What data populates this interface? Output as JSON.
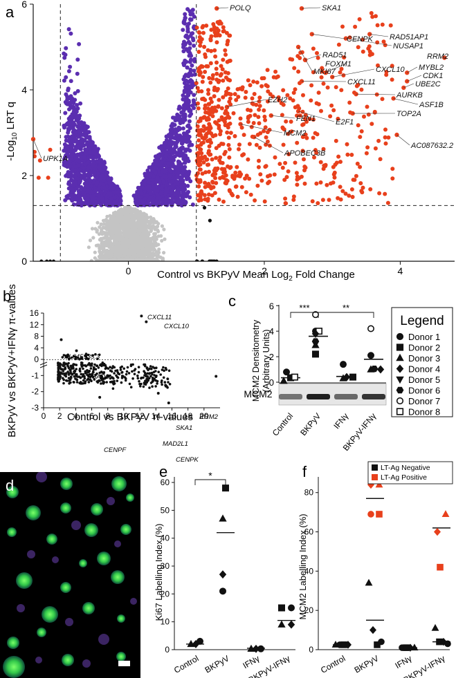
{
  "colors": {
    "red": "#e8401c",
    "purple": "#5b2eb0",
    "gray": "#c4c4c4",
    "black": "#111111"
  },
  "chart_data": [
    {
      "panel": "a",
      "type": "scatter",
      "xlabel_pre": "Control vs BKPyV Mean Log",
      "xlabel_sub": "2",
      "xlabel_post": " Fold Change",
      "ylabel_pre": "-Log",
      "ylabel_sub": "10",
      "ylabel_post": " LRT q",
      "xlim": [
        -1.4,
        4.8
      ],
      "ylim": [
        0,
        6
      ],
      "xticks": [
        "0",
        "2",
        "4"
      ],
      "xtick_values": [
        0,
        2,
        4
      ],
      "yticks": [
        "0",
        "2",
        "4",
        "6"
      ],
      "ytick_values": [
        0,
        2,
        4,
        6
      ],
      "thresholds": {
        "fold_change": [
          -1,
          1
        ],
        "q": 1.3
      },
      "labeled_genes": [
        {
          "gene": "POLQ",
          "x": 1.3,
          "y": 5.9
        },
        {
          "gene": "SKA1",
          "x": 2.55,
          "y": 5.9
        },
        {
          "gene": "CENPK",
          "x": 2.7,
          "y": 5.3
        },
        {
          "gene": "RAD51AP1",
          "x": 3.55,
          "y": 5.3
        },
        {
          "gene": "NUSAP1",
          "x": 3.2,
          "y": 5.2
        },
        {
          "gene": "RRM2",
          "x": 4.65,
          "y": 4.75
        },
        {
          "gene": "MKI67",
          "x": 2.5,
          "y": 5.0
        },
        {
          "gene": "RAD51",
          "x": 2.6,
          "y": 4.7
        },
        {
          "gene": "FOXM1",
          "x": 2.9,
          "y": 4.4
        },
        {
          "gene": "CXCL10",
          "x": 3.0,
          "y": 4.3
        },
        {
          "gene": "MYBL2",
          "x": 4.1,
          "y": 4.4
        },
        {
          "gene": "CDK1",
          "x": 4.1,
          "y": 4.2
        },
        {
          "gene": "UBE2C",
          "x": 4.05,
          "y": 4.05
        },
        {
          "gene": "CXCL11",
          "x": 2.55,
          "y": 4.2
        },
        {
          "gene": "AURKB",
          "x": 3.35,
          "y": 3.9
        },
        {
          "gene": "ASF1B",
          "x": 3.9,
          "y": 3.8
        },
        {
          "gene": "EZH2",
          "x": 1.45,
          "y": 3.6
        },
        {
          "gene": "FEN1",
          "x": 2.1,
          "y": 3.4
        },
        {
          "gene": "E2F1",
          "x": 2.5,
          "y": 3.5
        },
        {
          "gene": "TOP2A",
          "x": 3.3,
          "y": 3.45
        },
        {
          "gene": "MCM2",
          "x": 1.65,
          "y": 3.2
        },
        {
          "gene": "APOBEC3B",
          "x": 1.85,
          "y": 2.9
        },
        {
          "gene": "AC087632.2",
          "x": 3.95,
          "y": 2.95
        },
        {
          "gene": "UPK1A",
          "x": -1.4,
          "y": 2.85
        }
      ]
    },
    {
      "panel": "b",
      "type": "scatter",
      "xlabel": "Control vs BKPyV π-values",
      "ylabel": "BKPyV vs BKPyV+IFNγ π-values",
      "xlim": [
        0,
        22
      ],
      "ylim": [
        -3,
        16
      ],
      "xticks": [
        "0",
        "2",
        "4",
        "6",
        "8",
        "10",
        "12",
        "14",
        "16",
        "18",
        "20"
      ],
      "yticks_upper": [
        "16",
        "12",
        "8",
        "4",
        "0"
      ],
      "yticks_lower": [
        "-1",
        "-2",
        "-3"
      ],
      "labeled_points": [
        {
          "gene": "CXCL11",
          "x": 12.2,
          "y": 15
        },
        {
          "gene": "CXCL10",
          "x": 12.8,
          "y": 13
        },
        {
          "gene": "AL645933.3",
          "x": 2.2,
          "y": 6.8
        },
        {
          "gene": "RSAD2",
          "x": 4.1,
          "y": 3
        },
        {
          "gene": "RRM2",
          "x": 21.5,
          "y": -1.05
        },
        {
          "gene": "SKA1",
          "x": 15.2,
          "y": -1.6
        },
        {
          "gene": "MAD2L1",
          "x": 14.3,
          "y": -2.1
        },
        {
          "gene": "CENPF",
          "x": 7,
          "y": -2.35
        },
        {
          "gene": "CENPK",
          "x": 15.6,
          "y": -2.7
        }
      ]
    },
    {
      "panel": "c",
      "type": "scatter",
      "ylabel": "MCM2 Densitometry",
      "ylabel2": "(Arbitrary Units)",
      "yticks": [
        "0",
        "2",
        "4",
        "6"
      ],
      "ylim": [
        0,
        6
      ],
      "categories": [
        "Control",
        "BKPyV",
        "IFNγ",
        "BKPyV-IFNγ"
      ],
      "blot_label": "MCM2",
      "means": [
        0.35,
        3.6,
        0.45,
        1.8
      ],
      "points": [
        {
          "cat": 0,
          "donor": 1,
          "value": 0.8
        },
        {
          "cat": 0,
          "donor": 2,
          "value": 0.35
        },
        {
          "cat": 0,
          "donor": 3,
          "value": 0.1
        },
        {
          "cat": 0,
          "donor": 8,
          "value": 0.4
        },
        {
          "cat": 1,
          "donor": 1,
          "value": 4.0
        },
        {
          "cat": 1,
          "donor": 7,
          "value": 5.3
        },
        {
          "cat": 1,
          "donor": 8,
          "value": 4.0
        },
        {
          "cat": 1,
          "donor": 4,
          "value": 3.8
        },
        {
          "cat": 1,
          "donor": 6,
          "value": 3.2
        },
        {
          "cat": 1,
          "donor": 2,
          "value": 2.2
        },
        {
          "cat": 1,
          "donor": 3,
          "value": 2.9
        },
        {
          "cat": 2,
          "donor": 1,
          "value": 1.4
        },
        {
          "cat": 2,
          "donor": 3,
          "value": 0.3
        },
        {
          "cat": 2,
          "donor": 4,
          "value": 0.4
        },
        {
          "cat": 2,
          "donor": 2,
          "value": 0.4
        },
        {
          "cat": 3,
          "donor": 7,
          "value": 4.2
        },
        {
          "cat": 3,
          "donor": 1,
          "value": 2.1
        },
        {
          "cat": 3,
          "donor": 3,
          "value": 1.0
        },
        {
          "cat": 3,
          "donor": 6,
          "value": 1.05
        },
        {
          "cat": 3,
          "donor": 4,
          "value": 1.0
        }
      ],
      "significance": [
        {
          "from": 0,
          "to": 1,
          "label": "***"
        },
        {
          "from": 1,
          "to": 3,
          "label": "**"
        }
      ],
      "legend_title": "Legend",
      "legend": [
        "Donor 1",
        "Donor 2",
        "Donor 3",
        "Donor 4",
        "Donor 5",
        "Donor 6",
        "Donor 7",
        "Donor 8"
      ]
    },
    {
      "panel": "e",
      "type": "scatter",
      "ylabel": "Ki67 Labelling Index (%)",
      "yticks": [
        "0",
        "10",
        "20",
        "30",
        "40",
        "50",
        "60"
      ],
      "ylim": [
        0,
        62
      ],
      "categories": [
        "Control",
        "BKPyV",
        "IFNγ",
        "BKPyV-IFNγ"
      ],
      "means": [
        2,
        42,
        0.5,
        10.5
      ],
      "points": [
        {
          "cat": 0,
          "shape": "triangle",
          "value": 2
        },
        {
          "cat": 0,
          "shape": "diamond",
          "value": 2
        },
        {
          "cat": 0,
          "shape": "circle",
          "value": 3
        },
        {
          "cat": 1,
          "shape": "square",
          "value": 58
        },
        {
          "cat": 1,
          "shape": "triangle",
          "value": 47
        },
        {
          "cat": 1,
          "shape": "diamond",
          "value": 27
        },
        {
          "cat": 1,
          "shape": "circle",
          "value": 21
        },
        {
          "cat": 2,
          "shape": "triangle",
          "value": 0.3
        },
        {
          "cat": 2,
          "shape": "diamond",
          "value": 0.3
        },
        {
          "cat": 2,
          "shape": "circle",
          "value": 0.3
        },
        {
          "cat": 3,
          "shape": "square",
          "value": 15
        },
        {
          "cat": 3,
          "shape": "circle",
          "value": 15
        },
        {
          "cat": 3,
          "shape": "triangle",
          "value": 9
        },
        {
          "cat": 3,
          "shape": "diamond",
          "value": 9
        }
      ],
      "significance": [
        {
          "from": 0,
          "to": 1,
          "label": "*"
        }
      ]
    },
    {
      "panel": "f",
      "type": "scatter",
      "ylabel": "MCM2 Labelling Index (%)",
      "yticks": [
        "0",
        "20",
        "40",
        "60",
        "80"
      ],
      "ylim": [
        0,
        88
      ],
      "categories": [
        "Control",
        "BKPyV",
        "IFNγ",
        "BKPyV-IFNγ"
      ],
      "legend": [
        "LT-Ag Negative",
        "LT-Ag Positive"
      ],
      "means_negative": [
        2.5,
        15,
        1,
        4
      ],
      "means_positive": [
        0,
        77,
        0,
        62
      ],
      "points": [
        {
          "cat": 0,
          "group": "negative",
          "shape": "triangle",
          "value": 2.5
        },
        {
          "cat": 0,
          "group": "negative",
          "shape": "circle",
          "value": 2.5
        },
        {
          "cat": 0,
          "group": "negative",
          "shape": "square",
          "value": 2.5
        },
        {
          "cat": 0,
          "group": "negative",
          "shape": "diamond",
          "value": 2.5
        },
        {
          "cat": 1,
          "group": "positive",
          "shape": "diamond",
          "value": 84
        },
        {
          "cat": 1,
          "group": "positive",
          "shape": "triangle",
          "value": 84
        },
        {
          "cat": 1,
          "group": "positive",
          "shape": "circle",
          "value": 69
        },
        {
          "cat": 1,
          "group": "positive",
          "shape": "square",
          "value": 69
        },
        {
          "cat": 1,
          "group": "negative",
          "shape": "triangle",
          "value": 34
        },
        {
          "cat": 1,
          "group": "negative",
          "shape": "diamond",
          "value": 10
        },
        {
          "cat": 1,
          "group": "negative",
          "shape": "square",
          "value": 2.5
        },
        {
          "cat": 1,
          "group": "negative",
          "shape": "circle",
          "value": 4
        },
        {
          "cat": 2,
          "group": "negative",
          "shape": "circle",
          "value": 1
        },
        {
          "cat": 2,
          "group": "negative",
          "shape": "square",
          "value": 1
        },
        {
          "cat": 2,
          "group": "negative",
          "shape": "diamond",
          "value": 1
        },
        {
          "cat": 2,
          "group": "negative",
          "shape": "triangle",
          "value": 1
        },
        {
          "cat": 3,
          "group": "positive",
          "shape": "triangle",
          "value": 69
        },
        {
          "cat": 3,
          "group": "positive",
          "shape": "diamond",
          "value": 60
        },
        {
          "cat": 3,
          "group": "positive",
          "shape": "square",
          "value": 42
        },
        {
          "cat": 3,
          "group": "negative",
          "shape": "triangle",
          "value": 11
        },
        {
          "cat": 3,
          "group": "negative",
          "shape": "square",
          "value": 4
        },
        {
          "cat": 3,
          "group": "negative",
          "shape": "diamond",
          "value": 4
        },
        {
          "cat": 3,
          "group": "negative",
          "shape": "circle",
          "value": 3
        }
      ]
    }
  ],
  "micrograph": {
    "panel": "d"
  }
}
